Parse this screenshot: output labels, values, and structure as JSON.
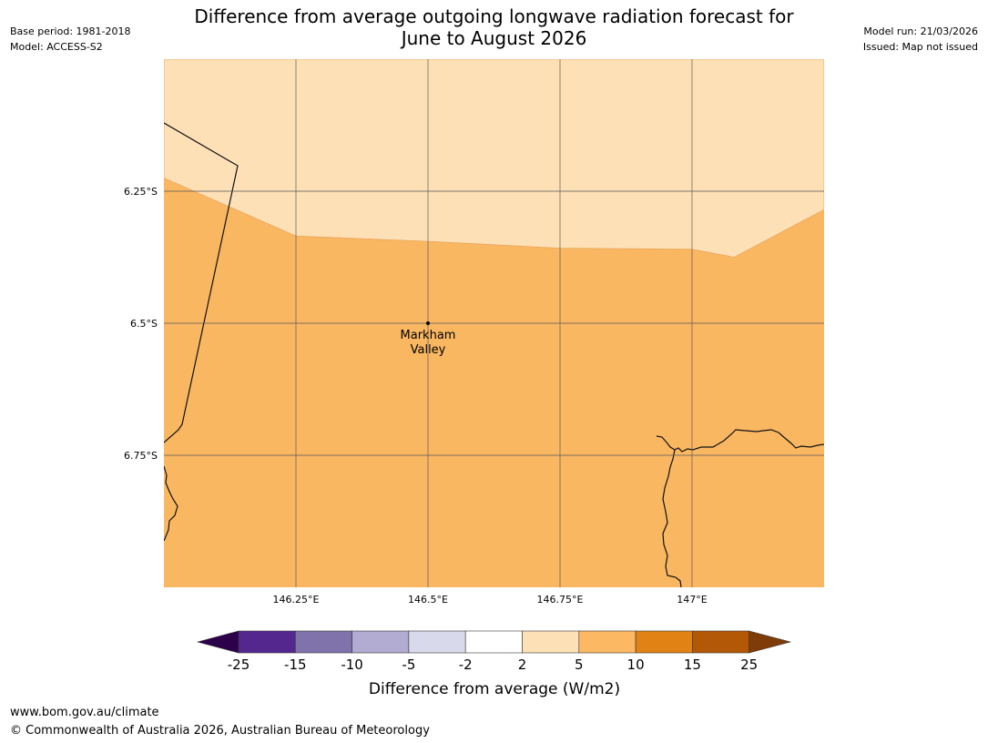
{
  "header": {
    "title_line1": "Difference from average outgoing longwave radiation forecast for",
    "title_line2": "June to August 2026",
    "base_period": "Base period: 1981-2018",
    "model": "Model: ACCESS-S2",
    "model_run": "Model run: 21/03/2026",
    "issued": "Issued: Map not issued"
  },
  "map": {
    "extent": {
      "lon": [
        146.0,
        147.25
      ],
      "lat": [
        -6.0,
        -7.0
      ]
    },
    "gridlines": {
      "lon": [
        146.25,
        146.5,
        146.75,
        147.0
      ],
      "lat": [
        -6.25,
        -6.5,
        -6.75
      ]
    },
    "lon_labels": [
      "146.25°E",
      "146.5°E",
      "146.75°E",
      "147°E"
    ],
    "lat_labels": [
      "6.25°S",
      "6.5°S",
      "6.75°S"
    ],
    "place": {
      "name_line1": "Markham",
      "name_line2": "Valley",
      "lon": 146.5,
      "lat": -6.5
    },
    "categories": [
      {
        "range": "2 to 5",
        "color": "#fde0b6"
      },
      {
        "range": "5 to 10",
        "color": "#fab762"
      }
    ],
    "boundary_2_5": [
      [
        146.0,
        -6.225
      ],
      [
        146.25,
        -6.335
      ],
      [
        146.5,
        -6.345
      ],
      [
        146.75,
        -6.358
      ],
      [
        147.0,
        -6.36
      ],
      [
        147.08,
        -6.375
      ],
      [
        147.25,
        -6.285
      ]
    ]
  },
  "colorbar": {
    "ticks": [
      "-25",
      "-15",
      "-10",
      "-5",
      "-2",
      "2",
      "5",
      "10",
      "15",
      "25"
    ],
    "colors": [
      "#54278f",
      "#8073ac",
      "#b2abd2",
      "#d8daeb",
      "#ffffff",
      "#fee0b6",
      "#fdb863",
      "#e08214",
      "#b35806"
    ],
    "extend_low_color": "#2d004b",
    "extend_high_color": "#7f3b08",
    "label": "Difference from average (W/m2)"
  },
  "footer": {
    "url": "www.bom.gov.au/climate",
    "copyright": "© Commonwealth of Australia 2026, Australian Bureau of Meteorology"
  }
}
